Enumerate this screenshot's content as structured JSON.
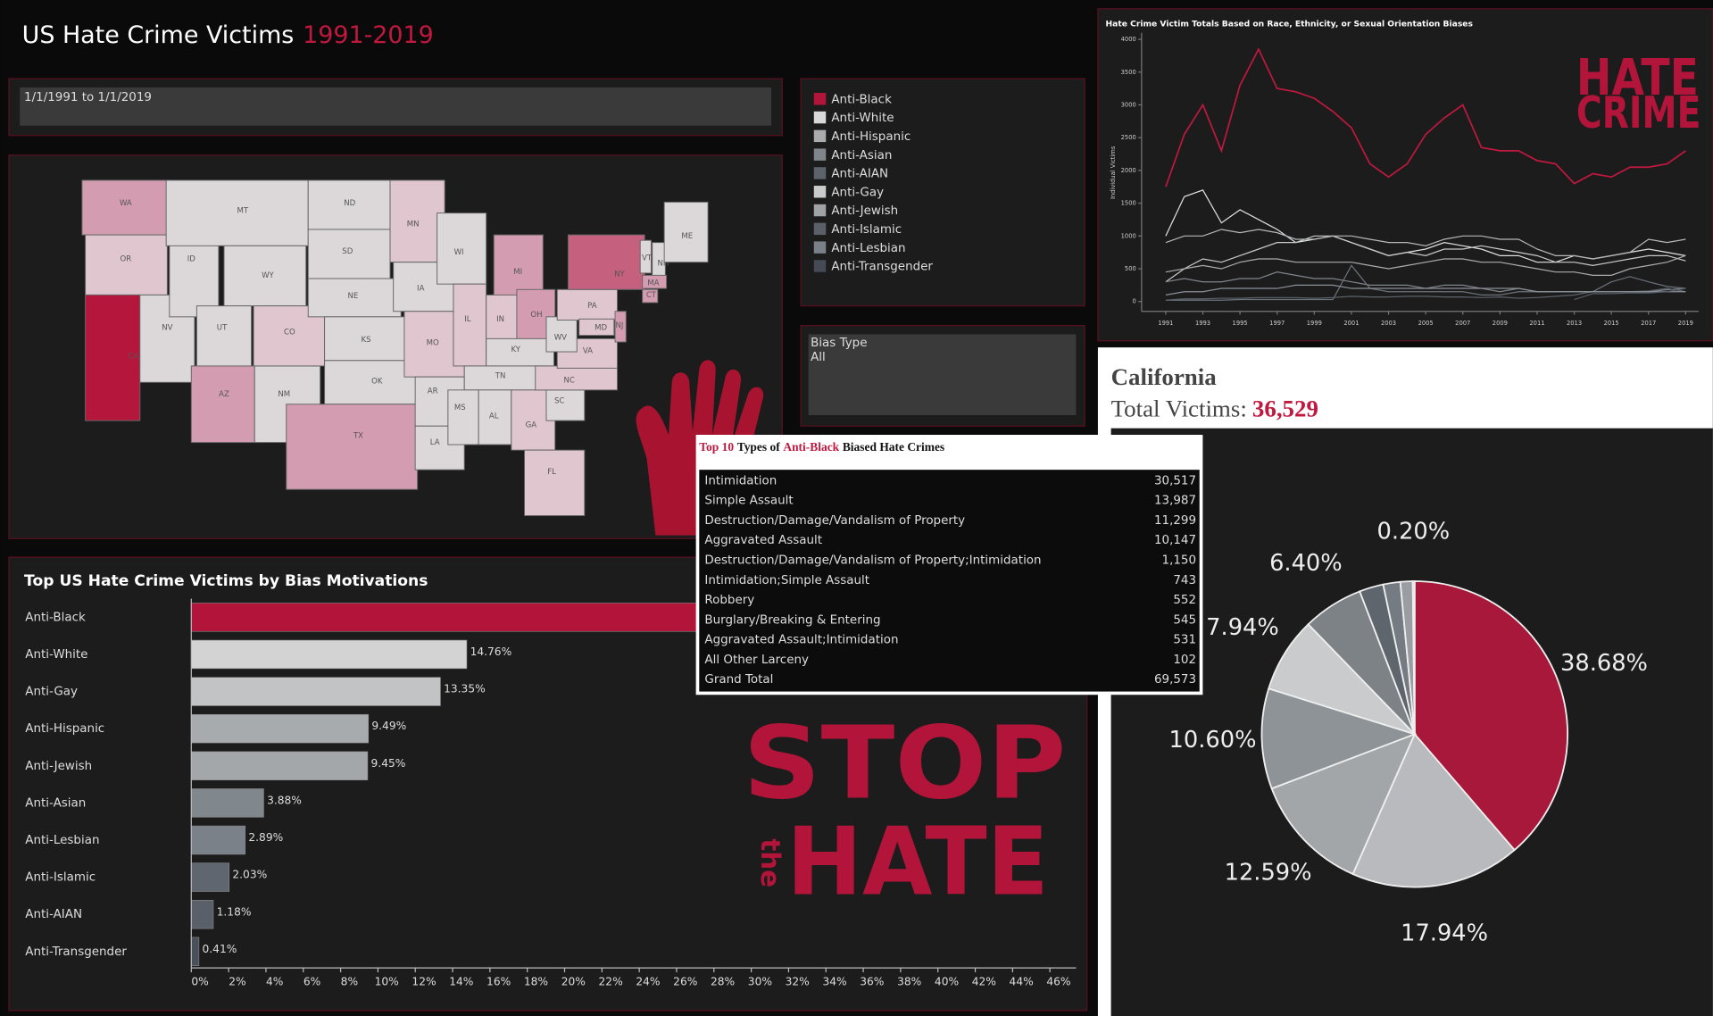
{
  "header": {
    "title": "US Hate Crime Victims",
    "years": "1991-2019"
  },
  "filters": {
    "date_range": "1/1/1991 to 1/1/2019",
    "bias_type_label": "Bias Type",
    "bias_type_value": "All"
  },
  "legend": [
    {
      "label": "Anti-Black",
      "color": "#b3143a"
    },
    {
      "label": "Anti-White",
      "color": "#d9d9d9"
    },
    {
      "label": "Anti-Hispanic",
      "color": "#a9abad"
    },
    {
      "label": "Anti-Asian",
      "color": "#7f858a"
    },
    {
      "label": "Anti-AIAN",
      "color": "#5c636b"
    },
    {
      "label": "Anti-Gay",
      "color": "#c9cacb"
    },
    {
      "label": "Anti-Jewish",
      "color": "#a0a3a6"
    },
    {
      "label": "Anti-Islamic",
      "color": "#5b6068"
    },
    {
      "label": "Anti-Lesbian",
      "color": "#7a8088"
    },
    {
      "label": "Anti-Transgender",
      "color": "#454b55"
    }
  ],
  "map": {
    "states": [
      {
        "label": "WA",
        "color": "#d49cb0"
      },
      {
        "label": "OR",
        "color": "#e0c6cf"
      },
      {
        "label": "CA",
        "color": "#b5173c"
      },
      {
        "label": "NV",
        "color": "#dcd8d9"
      },
      {
        "label": "ID",
        "color": "#dcd8d9"
      },
      {
        "label": "MT",
        "color": "#dcd8d9"
      },
      {
        "label": "WY",
        "color": "#dcd8d9"
      },
      {
        "label": "UT",
        "color": "#dcd8d9"
      },
      {
        "label": "AZ",
        "color": "#d49cb0"
      },
      {
        "label": "NM",
        "color": "#dcd8d9"
      },
      {
        "label": "CO",
        "color": "#e0c6cf"
      },
      {
        "label": "ND",
        "color": "#dcd8d9"
      },
      {
        "label": "SD",
        "color": "#dcd8d9"
      },
      {
        "label": "NE",
        "color": "#dcd8d9"
      },
      {
        "label": "KS",
        "color": "#dcd8d9"
      },
      {
        "label": "OK",
        "color": "#dcd8d9"
      },
      {
        "label": "TX",
        "color": "#d49cb0"
      },
      {
        "label": "MN",
        "color": "#e0c6cf"
      },
      {
        "label": "IA",
        "color": "#dcd8d9"
      },
      {
        "label": "MO",
        "color": "#e0c6cf"
      },
      {
        "label": "AR",
        "color": "#dcd8d9"
      },
      {
        "label": "LA",
        "color": "#dcd8d9"
      },
      {
        "label": "WI",
        "color": "#dcd8d9"
      },
      {
        "label": "IL",
        "color": "#e0c6cf"
      },
      {
        "label": "MI",
        "color": "#d49cb0"
      },
      {
        "label": "IN",
        "color": "#e0c6cf"
      },
      {
        "label": "OH",
        "color": "#d49cb0"
      },
      {
        "label": "KY",
        "color": "#dcd8d9"
      },
      {
        "label": "TN",
        "color": "#dcd8d9"
      },
      {
        "label": "MS",
        "color": "#dcd8d9"
      },
      {
        "label": "AL",
        "color": "#dcd8d9"
      },
      {
        "label": "GA",
        "color": "#e0c6cf"
      },
      {
        "label": "FL",
        "color": "#e0c6cf"
      },
      {
        "label": "SC",
        "color": "#dcd8d9"
      },
      {
        "label": "NC",
        "color": "#e0c6cf"
      },
      {
        "label": "VA",
        "color": "#e0c6cf"
      },
      {
        "label": "WV",
        "color": "#dcd8d9"
      },
      {
        "label": "PA",
        "color": "#e0c6cf"
      },
      {
        "label": "NY",
        "color": "#c5607f"
      },
      {
        "label": "VT",
        "color": "#dcd8d9"
      },
      {
        "label": "NH",
        "color": "#dcd8d9"
      },
      {
        "label": "ME",
        "color": "#dcd8d9"
      },
      {
        "label": "MA",
        "color": "#d49cb0"
      },
      {
        "label": "CT",
        "color": "#d49cb0"
      },
      {
        "label": "NJ",
        "color": "#d49cb0"
      },
      {
        "label": "MD",
        "color": "#e0c6cf"
      }
    ]
  },
  "table": {
    "title_parts": [
      "Top 10",
      "Types of",
      "Anti-Black",
      "Biased Hate Crimes"
    ],
    "rows": [
      [
        "Intimidation",
        "30,517"
      ],
      [
        "Simple Assault",
        "13,987"
      ],
      [
        "Destruction/Damage/Vandalism of Property",
        "11,299"
      ],
      [
        "Aggravated Assault",
        "10,147"
      ],
      [
        "Destruction/Damage/Vandalism of Property;Intimidation",
        "1,150"
      ],
      [
        "Intimidation;Simple Assault",
        "743"
      ],
      [
        "Robbery",
        "552"
      ],
      [
        "Burglary/Breaking & Entering",
        "545"
      ],
      [
        "Aggravated Assault;Intimidation",
        "531"
      ],
      [
        "All Other Larceny",
        "102"
      ],
      [
        "Grand Total",
        "69,573"
      ]
    ]
  },
  "graphics": {
    "logo_top": "HATE",
    "logo_bottom": "CRIME",
    "stop": "STOP",
    "the": "the",
    "hate": "HATE"
  },
  "california": {
    "state": "California",
    "total_label": "Total Victims:",
    "total": "36,529"
  },
  "chart_data": [
    {
      "type": "bar",
      "orientation": "horizontal",
      "title": "Top US Hate Crime Victims by Bias Motivations",
      "categories": [
        "Anti-Black",
        "Anti-White",
        "Anti-Gay",
        "Anti-Hispanic",
        "Anti-Jewish",
        "Anti-Asian",
        "Anti-Lesbian",
        "Anti-Islamic",
        "Anti-AIAN",
        "Anti-Transgender"
      ],
      "values": [
        42.56,
        14.76,
        13.35,
        9.49,
        9.45,
        3.88,
        2.89,
        2.03,
        1.18,
        0.41
      ],
      "value_labels": [
        null,
        "14.76%",
        "13.35%",
        "9.49%",
        "9.45%",
        "3.88%",
        "2.89%",
        "2.03%",
        "1.18%",
        "0.41%"
      ],
      "colors": [
        "#b3143a",
        "#d3d3d3",
        "#c2c3c5",
        "#a8abae",
        "#a4a7aa",
        "#80878d",
        "#7b8189",
        "#5f6670",
        "#5a6069",
        "#4a505a"
      ],
      "xlim": [
        0,
        47.4
      ],
      "xticks": [
        {
          "value": 0,
          "label": "0%"
        },
        {
          "value": 2,
          "label": "2%"
        },
        {
          "value": 4,
          "label": "4%"
        },
        {
          "value": 6,
          "label": "6%"
        },
        {
          "value": 8,
          "label": "8%"
        },
        {
          "value": 10,
          "label": "10%"
        },
        {
          "value": 12,
          "label": "12%"
        },
        {
          "value": 14,
          "label": "14%"
        },
        {
          "value": 16,
          "label": "16%"
        },
        {
          "value": 18,
          "label": "18%"
        },
        {
          "value": 20,
          "label": "20%"
        },
        {
          "value": 22,
          "label": "22%"
        },
        {
          "value": 24,
          "label": "24%"
        },
        {
          "value": 26,
          "label": "26%"
        },
        {
          "value": 28,
          "label": "28%"
        },
        {
          "value": 30,
          "label": "30%"
        },
        {
          "value": 32,
          "label": "32%"
        },
        {
          "value": 34,
          "label": "34%"
        },
        {
          "value": 36,
          "label": "36%"
        },
        {
          "value": 38,
          "label": "38%"
        },
        {
          "value": 40,
          "label": "40%"
        },
        {
          "value": 42,
          "label": "42%"
        },
        {
          "value": 44,
          "label": "44%"
        },
        {
          "value": 46,
          "label": "46%"
        }
      ]
    },
    {
      "type": "line",
      "title": "Hate Crime Victim Totals Based on Race, Ethnicity, or Sexual Orientation Biases",
      "y_label": "Individual Victims",
      "x": [
        1991,
        1992,
        1993,
        1994,
        1995,
        1996,
        1997,
        1998,
        1999,
        2000,
        2001,
        2002,
        2003,
        2004,
        2005,
        2006,
        2007,
        2008,
        2009,
        2010,
        2011,
        2012,
        2013,
        2014,
        2015,
        2016,
        2017,
        2018,
        2019
      ],
      "xlim": [
        1989.7,
        2019.7
      ],
      "xticks": [
        1991,
        1993,
        1995,
        1997,
        1999,
        2001,
        2003,
        2005,
        2007,
        2009,
        2011,
        2013,
        2015,
        2017,
        2019
      ],
      "ylim": [
        -150,
        4100
      ],
      "yticks": [
        0,
        500,
        1000,
        1500,
        2000,
        2500,
        3000,
        3500,
        4000
      ],
      "series": [
        {
          "name": "Anti-Black",
          "color": "#c0183f",
          "values": [
            1750,
            2550,
            3000,
            2300,
            3300,
            3850,
            3250,
            3200,
            3100,
            2900,
            2650,
            2100,
            1900,
            2100,
            2550,
            2800,
            3000,
            2350,
            2300,
            2300,
            2150,
            2100,
            1800,
            1950,
            1900,
            2050,
            2050,
            2100,
            2300
          ]
        },
        {
          "name": "Anti-White",
          "color": "#e0e0e0",
          "values": [
            1000,
            1600,
            1700,
            1200,
            1400,
            1250,
            1100,
            900,
            950,
            1000,
            900,
            800,
            700,
            750,
            800,
            900,
            850,
            800,
            700,
            700,
            600,
            600,
            700,
            650,
            700,
            750,
            800,
            750,
            700
          ]
        },
        {
          "name": "Anti-Gay",
          "color": "#c9cacb",
          "values": [
            300,
            500,
            650,
            600,
            700,
            800,
            900,
            900,
            1000,
            1000,
            900,
            800,
            700,
            750,
            700,
            800,
            800,
            850,
            800,
            750,
            700,
            600,
            600,
            550,
            600,
            650,
            700,
            700,
            620
          ]
        },
        {
          "name": "Anti-Hispanic",
          "color": "#a9abad",
          "values": [
            450,
            500,
            550,
            500,
            600,
            650,
            650,
            600,
            600,
            600,
            600,
            550,
            500,
            550,
            600,
            650,
            650,
            600,
            600,
            550,
            500,
            450,
            450,
            400,
            400,
            500,
            550,
            600,
            700
          ]
        },
        {
          "name": "Anti-Jewish",
          "color": "#b5b7b9",
          "values": [
            900,
            1000,
            1000,
            1100,
            1050,
            1100,
            1050,
            950,
            950,
            1000,
            1000,
            950,
            900,
            900,
            850,
            950,
            1000,
            1000,
            950,
            950,
            800,
            700,
            700,
            650,
            700,
            750,
            950,
            900,
            950
          ]
        },
        {
          "name": "Anti-Asian",
          "color": "#7f858a",
          "values": [
            300,
            350,
            300,
            300,
            350,
            350,
            450,
            400,
            350,
            350,
            300,
            250,
            250,
            250,
            200,
            250,
            250,
            200,
            150,
            200,
            150,
            150,
            150,
            150,
            150,
            150,
            150,
            180,
            200
          ]
        },
        {
          "name": "Anti-Islamic",
          "color": "#6b727a",
          "values": [
            20,
            20,
            20,
            20,
            30,
            30,
            30,
            30,
            30,
            30,
            550,
            200,
            150,
            150,
            150,
            150,
            150,
            100,
            100,
            150,
            150,
            150,
            150,
            150,
            300,
            380,
            300,
            230,
            200
          ]
        },
        {
          "name": "Anti-AIAN",
          "color": "#5c636b",
          "values": [
            20,
            40,
            40,
            50,
            50,
            60,
            60,
            60,
            50,
            60,
            80,
            70,
            70,
            80,
            80,
            70,
            70,
            60,
            70,
            50,
            60,
            80,
            100,
            150,
            150,
            150,
            160,
            200,
            150
          ]
        },
        {
          "name": "Anti-Lesbian",
          "color": "#8a9097",
          "values": [
            100,
            150,
            150,
            200,
            200,
            200,
            200,
            250,
            250,
            250,
            200,
            200,
            200,
            200,
            200,
            200,
            200,
            200,
            200,
            200,
            150,
            150,
            150,
            150,
            150,
            150,
            150,
            150,
            150
          ]
        },
        {
          "name": "Anti-Transgender",
          "color": "#565d67",
          "values": [
            null,
            null,
            null,
            null,
            null,
            null,
            null,
            null,
            null,
            null,
            null,
            null,
            null,
            null,
            null,
            null,
            null,
            null,
            null,
            null,
            null,
            null,
            30,
            120,
            120,
            130,
            130,
            150,
            200
          ]
        }
      ]
    },
    {
      "type": "pie",
      "values": [
        38.68,
        17.94,
        12.59,
        10.6,
        7.94,
        6.4,
        2.55,
        1.8,
        1.3,
        0.2
      ],
      "value_labels": [
        "38.68%",
        "17.94%",
        "12.59%",
        "10.60%",
        "7.94%",
        "6.40%",
        null,
        null,
        null,
        "0.20%"
      ],
      "colors": [
        "#a8183a",
        "#b8babd",
        "#a3a6a9",
        "#8e9397",
        "#c9cbcc",
        "#7d8287",
        "#5e656d",
        "#757b82",
        "#9a9ea2",
        "#d0d0d0"
      ]
    }
  ]
}
